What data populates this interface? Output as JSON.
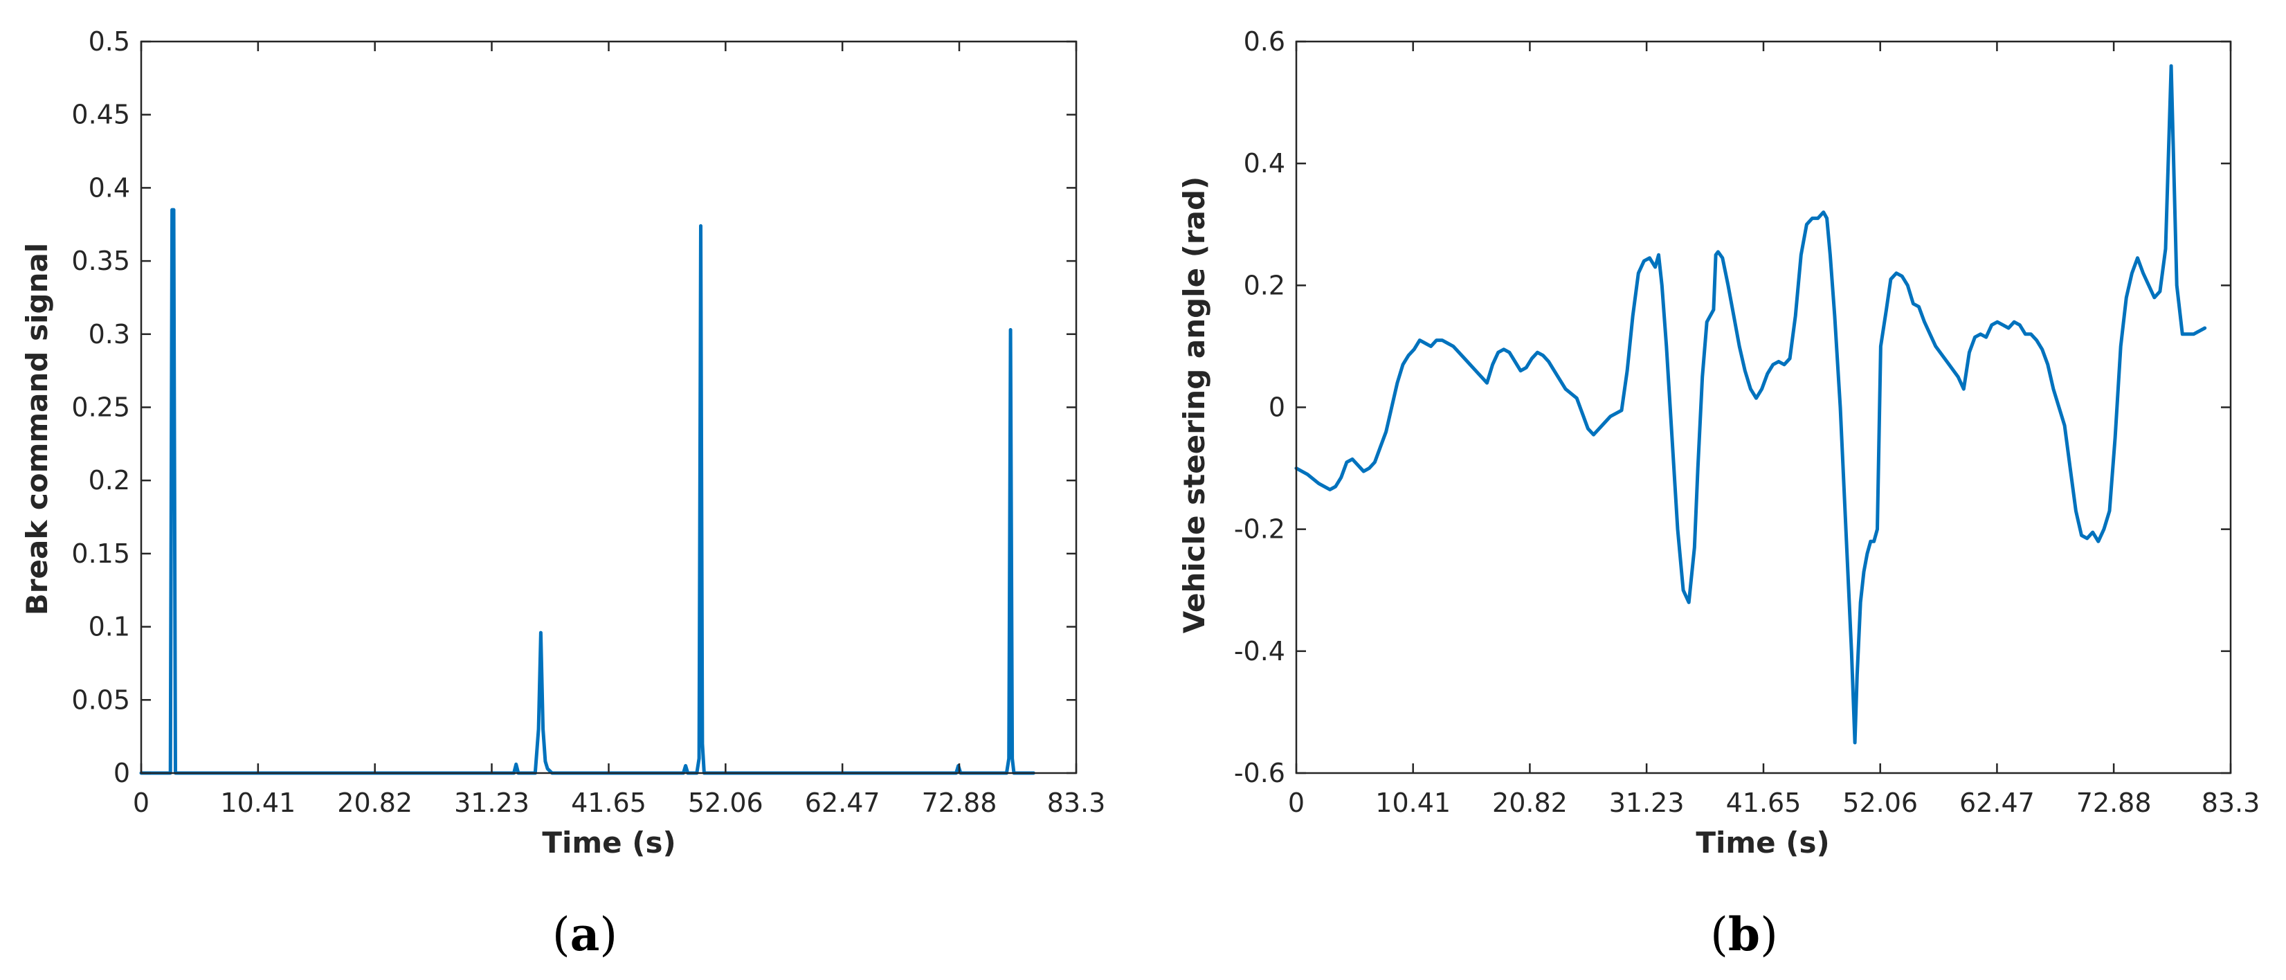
{
  "chart_data": [
    {
      "type": "line",
      "panel_label": {
        "open": "(",
        "letter": "a",
        "close": ")"
      },
      "xlabel": "Time (s)",
      "ylabel": "Break command signal",
      "xlim": [
        0,
        83.3
      ],
      "ylim": [
        0,
        0.5
      ],
      "xticks": [
        0,
        10.41,
        20.82,
        31.23,
        41.65,
        52.06,
        62.47,
        72.88,
        83.3
      ],
      "xtick_labels": [
        "0",
        "10.41",
        "20.82",
        "31.23",
        "41.65",
        "52.06",
        "62.47",
        "72.88",
        "83.3"
      ],
      "yticks": [
        0,
        0.05,
        0.1,
        0.15,
        0.2,
        0.25,
        0.3,
        0.35,
        0.4,
        0.45,
        0.5
      ],
      "ytick_labels": [
        "0",
        "0.05",
        "0.1",
        "0.15",
        "0.2",
        "0.25",
        "0.3",
        "0.35",
        "0.4",
        "0.45",
        "0.5"
      ],
      "grid": false,
      "color": "#0072BD",
      "series": [
        {
          "x": [
            0,
            2.6,
            2.75,
            2.9,
            3.05,
            3.2,
            33.2,
            33.4,
            33.6,
            35.1,
            35.4,
            35.6,
            35.8,
            36.0,
            36.2,
            36.6,
            48.3,
            48.5,
            48.7,
            49.5,
            49.7,
            49.85,
            50.0,
            50.15,
            72.6,
            72.8,
            73.0,
            77.1,
            77.3,
            77.45,
            77.6,
            77.75,
            79.5
          ],
          "y": [
            0,
            0,
            0.385,
            0.385,
            0,
            0,
            0,
            0.006,
            0,
            0,
            0.03,
            0.096,
            0.03,
            0.008,
            0.003,
            0,
            0,
            0.005,
            0,
            0,
            0.01,
            0.374,
            0.02,
            0,
            0,
            0.005,
            0,
            0,
            0.01,
            0.303,
            0.01,
            0,
            0
          ]
        }
      ]
    },
    {
      "type": "line",
      "panel_label": {
        "open": "(",
        "letter": "b",
        "close": ")"
      },
      "xlabel": "Time (s)",
      "ylabel": "Vehicle steering angle (rad)",
      "xlim": [
        0,
        83.3
      ],
      "ylim": [
        -0.6,
        0.6
      ],
      "xticks": [
        0,
        10.41,
        20.82,
        31.23,
        41.65,
        52.06,
        62.47,
        72.88,
        83.3
      ],
      "xtick_labels": [
        "0",
        "10.41",
        "20.82",
        "31.23",
        "41.65",
        "52.06",
        "62.47",
        "72.88",
        "83.3"
      ],
      "yticks": [
        -0.6,
        -0.4,
        -0.2,
        0,
        0.2,
        0.4,
        0.6
      ],
      "ytick_labels": [
        "-0.6",
        "-0.4",
        "-0.2",
        "0",
        "0.2",
        "0.4",
        "0.6"
      ],
      "grid": false,
      "color": "#0072BD",
      "series": [
        {
          "x": [
            0,
            1,
            2,
            3,
            3.5,
            4,
            4.5,
            5,
            5.5,
            6,
            6.5,
            7,
            7.5,
            8,
            8.5,
            9,
            9.5,
            10,
            10.5,
            11,
            11.5,
            12,
            12.5,
            13,
            13.5,
            14,
            15,
            16,
            17,
            17.5,
            18,
            18.5,
            19,
            19.5,
            20,
            20.5,
            21,
            21.5,
            22,
            22.5,
            23,
            24,
            25,
            25.5,
            26,
            26.5,
            27,
            27.5,
            28,
            29,
            29.5,
            30,
            30.5,
            31,
            31.5,
            32,
            32.3,
            32.6,
            33,
            33.5,
            34,
            34.5,
            35,
            35.5,
            35.8,
            36.2,
            36.6,
            37.2,
            37.4,
            37.6,
            38,
            38.5,
            39,
            39.5,
            40,
            40.5,
            41,
            41.5,
            42,
            42.5,
            43,
            43.5,
            44,
            44.5,
            45,
            45.5,
            46,
            46.5,
            47,
            47.3,
            47.6,
            48,
            48.5,
            49,
            49.5,
            49.8,
            50,
            50.3,
            50.6,
            50.9,
            51.2,
            51.5,
            51.8,
            52.1,
            52.6,
            53,
            53.5,
            54,
            54.5,
            55,
            55.5,
            56,
            57,
            58,
            59,
            59.5,
            60,
            60.5,
            61,
            61.5,
            62,
            62.5,
            63,
            63.5,
            64,
            64.5,
            65,
            65.5,
            66,
            66.5,
            67,
            67.5,
            68,
            68.5,
            69,
            69.5,
            70,
            70.5,
            71,
            71.5,
            72,
            72.5,
            73,
            73.5,
            74,
            74.5,
            75,
            75.5,
            76,
            76.5,
            77,
            77.5,
            78,
            78.5,
            79,
            79.5,
            80,
            80.5,
            81
          ],
          "y": [
            -0.1,
            -0.11,
            -0.125,
            -0.135,
            -0.13,
            -0.115,
            -0.09,
            -0.085,
            -0.095,
            -0.105,
            -0.1,
            -0.09,
            -0.065,
            -0.04,
            0,
            0.04,
            0.07,
            0.085,
            0.095,
            0.11,
            0.105,
            0.1,
            0.11,
            0.11,
            0.105,
            0.1,
            0.08,
            0.06,
            0.04,
            0.07,
            0.09,
            0.095,
            0.09,
            0.075,
            0.06,
            0.065,
            0.08,
            0.09,
            0.085,
            0.075,
            0.06,
            0.03,
            0.015,
            -0.01,
            -0.035,
            -0.045,
            -0.035,
            -0.025,
            -0.015,
            -0.005,
            0.06,
            0.15,
            0.22,
            0.24,
            0.245,
            0.23,
            0.25,
            0.2,
            0.1,
            -0.05,
            -0.2,
            -0.3,
            -0.32,
            -0.23,
            -0.1,
            0.05,
            0.14,
            0.16,
            0.25,
            0.255,
            0.245,
            0.2,
            0.15,
            0.1,
            0.06,
            0.03,
            0.015,
            0.03,
            0.055,
            0.07,
            0.075,
            0.07,
            0.08,
            0.15,
            0.25,
            0.3,
            0.31,
            0.31,
            0.32,
            0.31,
            0.25,
            0.15,
            0.0,
            -0.2,
            -0.4,
            -0.55,
            -0.44,
            -0.32,
            -0.27,
            -0.24,
            -0.22,
            -0.22,
            -0.2,
            0.1,
            0.16,
            0.21,
            0.22,
            0.215,
            0.2,
            0.17,
            0.165,
            0.14,
            0.1,
            0.075,
            0.05,
            0.03,
            0.09,
            0.115,
            0.12,
            0.115,
            0.135,
            0.14,
            0.135,
            0.13,
            0.14,
            0.135,
            0.12,
            0.12,
            0.11,
            0.095,
            0.07,
            0.03,
            0.0,
            -0.03,
            -0.1,
            -0.17,
            -0.21,
            -0.215,
            -0.205,
            -0.22,
            -0.2,
            -0.17,
            -0.05,
            0.1,
            0.18,
            0.22,
            0.245,
            0.22,
            0.2,
            0.18,
            0.19,
            0.26,
            0.56,
            0.2,
            0.12,
            0.12,
            0.12,
            0.125,
            0.13
          ]
        }
      ]
    }
  ]
}
